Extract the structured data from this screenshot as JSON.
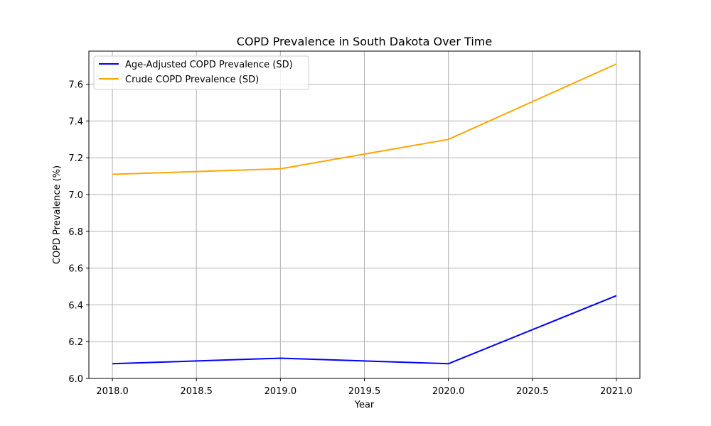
{
  "chart_data": {
    "type": "line",
    "title": "COPD Prevalence in South Dakota Over Time",
    "xlabel": "Year",
    "ylabel": "COPD Prevalence (%)",
    "x": [
      2018,
      2019,
      2020,
      2021
    ],
    "xlim": [
      2017.86,
      2021.14
    ],
    "ylim": [
      6.0,
      7.78
    ],
    "xticks": [
      "2018.0",
      "2018.5",
      "2019.0",
      "2019.5",
      "2020.0",
      "2020.5",
      "2021.0"
    ],
    "yticks": [
      "6.0",
      "6.2",
      "6.4",
      "6.6",
      "6.8",
      "7.0",
      "7.2",
      "7.4",
      "7.6"
    ],
    "grid": true,
    "legend_position": "upper-left",
    "series": [
      {
        "name": "Age-Adjusted COPD Prevalence (SD)",
        "color": "#0000ff",
        "values": [
          6.08,
          6.11,
          6.08,
          6.45
        ]
      },
      {
        "name": "Crude COPD Prevalence (SD)",
        "color": "#ffa500",
        "values": [
          7.11,
          7.14,
          7.3,
          7.71
        ]
      }
    ]
  }
}
